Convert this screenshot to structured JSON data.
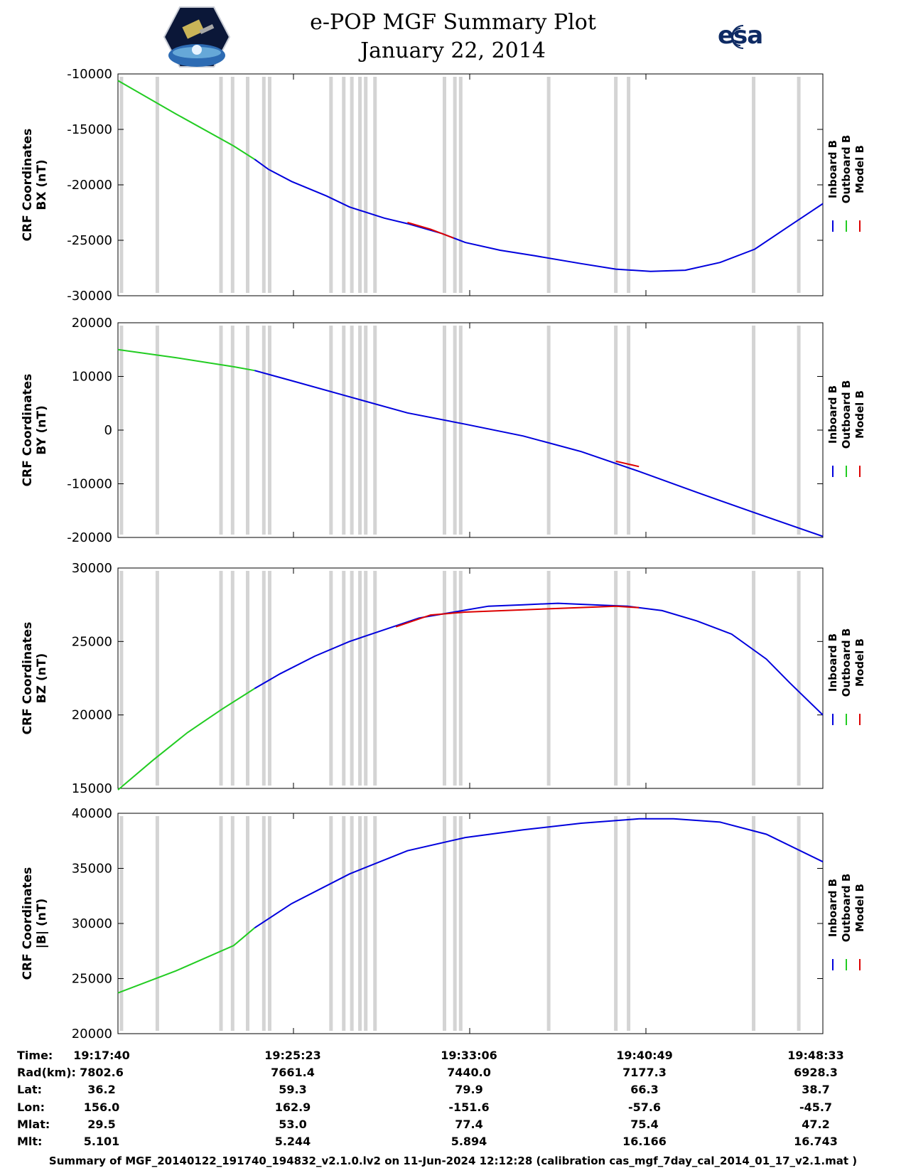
{
  "header": {
    "title": "e-POP MGF Summary Plot",
    "subtitle": "January 22, 2014",
    "left_logo": "cassiope-logo",
    "right_logo_text": "esa"
  },
  "colors": {
    "inboard": "#0000dd",
    "outboard": "#22cc22",
    "model": "#dd0000",
    "gap_band": "#d4d4d4"
  },
  "legend": [
    "Inboard B",
    "Outboard B",
    "Model B"
  ],
  "gap_times_min": [
    0.3,
    3.4,
    8.9,
    9.9,
    11.2,
    12.6,
    13.1,
    18.4,
    19.5,
    20.2,
    20.9,
    21.4,
    22.2,
    28.2,
    29.1,
    29.6,
    37.2,
    43.0,
    44.1,
    54.9,
    58.8
  ],
  "table": {
    "row_labels": [
      "Time:",
      "Rad(km):",
      "Lat:",
      "Lon:",
      "Mlat:",
      "Mlt:"
    ],
    "columns": [
      [
        "19:17:40",
        "7802.6",
        "36.2",
        "156.0",
        "29.5",
        "5.101"
      ],
      [
        "19:25:23",
        "7661.4",
        "59.3",
        "162.9",
        "53.0",
        "5.244"
      ],
      [
        "19:33:06",
        "7440.0",
        "79.9",
        "-151.6",
        "77.4",
        "5.894"
      ],
      [
        "19:40:49",
        "7177.3",
        "66.3",
        "-57.6",
        "75.4",
        "16.166"
      ],
      [
        "19:48:33",
        "6928.3",
        "38.7",
        "-45.7",
        "47.2",
        "16.743"
      ]
    ]
  },
  "footer": "Summary of MGF_20140122_191740_194832_v2.1.0.lv2 on 11-Jun-2024 12:12:28 (calibration cas_mgf_7day_cal_2014_01_17_v2.1.mat )",
  "chart_data": [
    {
      "type": "line",
      "ylabel": [
        "CRF Coordinates",
        "BX (nT)"
      ],
      "xlim": [
        0,
        60.88
      ],
      "ylim": [
        -30000,
        -10000
      ],
      "yticks": [
        -10000,
        -15000,
        -20000,
        -25000,
        -30000
      ],
      "x": [
        0,
        5,
        10,
        11.8,
        13,
        15,
        18,
        20,
        23,
        25,
        28,
        30,
        33,
        36,
        40,
        43,
        46,
        49,
        52,
        55,
        58,
        60.88
      ],
      "series": [
        {
          "name": "Outboard B",
          "x": [
            0,
            5,
            10,
            11.8
          ],
          "values": [
            -10600,
            -13600,
            -16500,
            -17700
          ]
        },
        {
          "name": "Inboard B",
          "x": [
            11.8,
            13,
            15,
            18,
            20,
            23,
            25,
            28,
            30,
            33,
            36,
            40,
            43,
            46,
            49,
            52,
            55,
            58,
            60.88
          ],
          "values": [
            -17700,
            -18600,
            -19700,
            -21000,
            -22000,
            -23000,
            -23500,
            -24400,
            -25200,
            -25900,
            -26400,
            -27100,
            -27600,
            -27800,
            -27700,
            -27000,
            -25800,
            -23700,
            -21700
          ]
        },
        {
          "name": "Model B",
          "x": [
            25,
            27,
            29
          ],
          "values": [
            -23400,
            -24000,
            -24800
          ]
        }
      ]
    },
    {
      "type": "line",
      "ylabel": [
        "CRF Coordinates",
        "BY (nT)"
      ],
      "xlim": [
        0,
        60.88
      ],
      "ylim": [
        -20000,
        20000
      ],
      "yticks": [
        20000,
        10000,
        0,
        -10000,
        -20000
      ],
      "series": [
        {
          "name": "Outboard B",
          "x": [
            0,
            5,
            10,
            11.8
          ],
          "values": [
            15000,
            13500,
            11800,
            11100
          ]
        },
        {
          "name": "Inboard B",
          "x": [
            11.8,
            15,
            20,
            25,
            30,
            35,
            40,
            45,
            50,
            55,
            60.88
          ],
          "values": [
            11100,
            9200,
            6200,
            3200,
            1100,
            -1100,
            -4000,
            -7700,
            -11600,
            -15400,
            -19800
          ]
        },
        {
          "name": "Model B",
          "x": [
            43,
            45
          ],
          "values": [
            -5800,
            -6800
          ]
        }
      ]
    },
    {
      "type": "line",
      "ylabel": [
        "CRF Coordinates",
        "BZ (nT)"
      ],
      "xlim": [
        0,
        60.88
      ],
      "ylim": [
        15000,
        30000
      ],
      "yticks": [
        30000,
        25000,
        20000,
        15000
      ],
      "series": [
        {
          "name": "Outboard B",
          "x": [
            0,
            3,
            6,
            9,
            11.8
          ],
          "values": [
            14900,
            16900,
            18800,
            20400,
            21800
          ]
        },
        {
          "name": "Inboard B",
          "x": [
            11.8,
            14,
            17,
            20,
            23,
            26,
            29,
            32,
            35,
            38,
            41,
            44,
            47,
            50,
            53,
            56,
            58,
            60.88
          ],
          "values": [
            21800,
            22800,
            24000,
            25000,
            25800,
            26600,
            27000,
            27400,
            27500,
            27600,
            27500,
            27400,
            27100,
            26400,
            25500,
            23800,
            22200,
            20000
          ]
        },
        {
          "name": "Model B",
          "x": [
            24,
            27,
            30,
            43,
            45
          ],
          "values": [
            26000,
            26800,
            27000,
            27400,
            27300
          ]
        }
      ]
    },
    {
      "type": "line",
      "ylabel": [
        "CRF Coordinates",
        "|B| (nT)"
      ],
      "xlim": [
        0,
        60.88
      ],
      "ylim": [
        20000,
        40000
      ],
      "yticks": [
        40000,
        35000,
        30000,
        25000,
        20000
      ],
      "series": [
        {
          "name": "Outboard B",
          "x": [
            0,
            5,
            10,
            11.8
          ],
          "values": [
            23700,
            25700,
            28000,
            29600
          ]
        },
        {
          "name": "Inboard B",
          "x": [
            11.8,
            15,
            20,
            25,
            30,
            35,
            40,
            45,
            48,
            52,
            56,
            60.88
          ],
          "values": [
            29600,
            31800,
            34500,
            36600,
            37800,
            38500,
            39100,
            39500,
            39500,
            39200,
            38100,
            35600
          ]
        }
      ]
    }
  ]
}
